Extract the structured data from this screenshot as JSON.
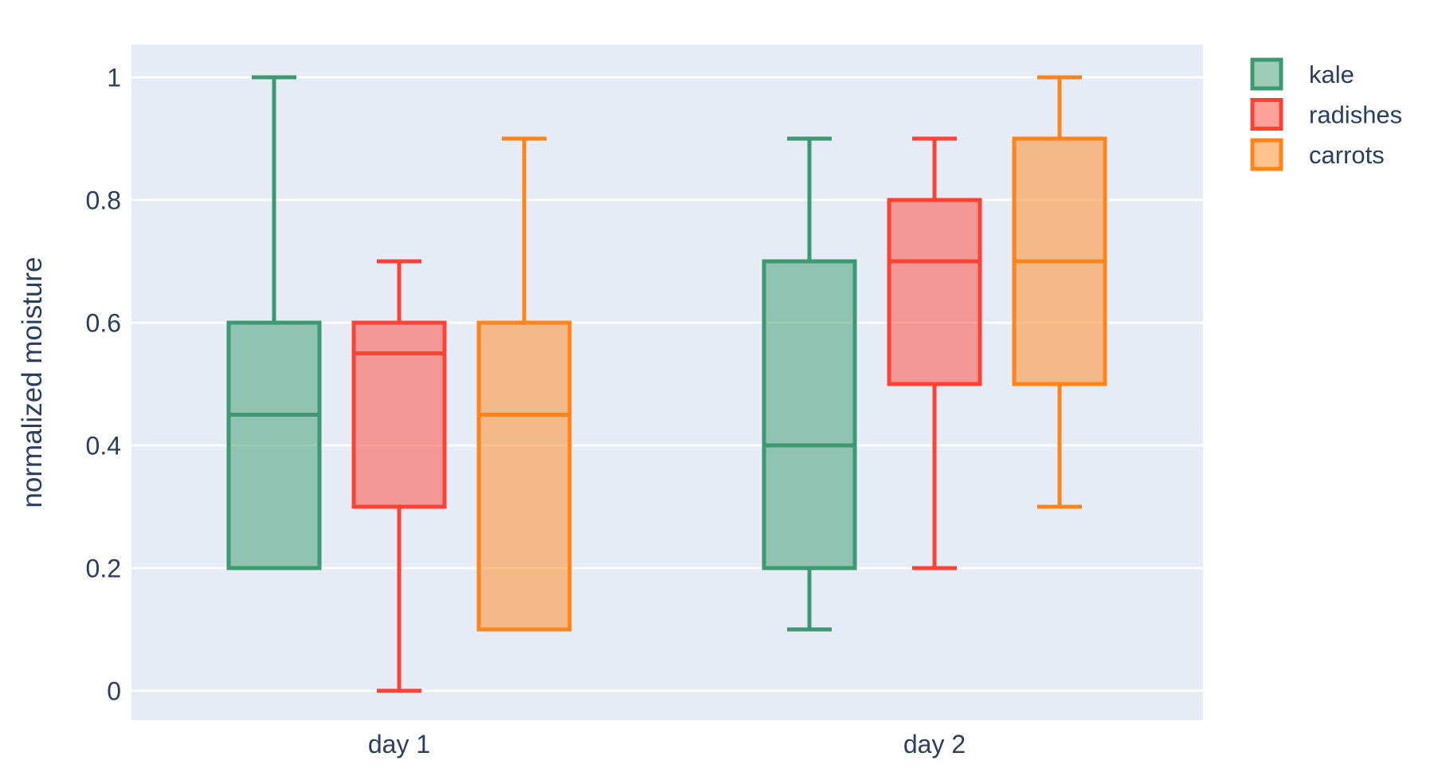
{
  "figure": {
    "background_color": "#ffffff",
    "plot_background_color": "#e5ecf6",
    "grid_color": "#ffffff",
    "text_color": "#2a3f5f"
  },
  "chart_data": {
    "type": "box",
    "boxmode": "group",
    "title": "",
    "xlabel": "",
    "ylabel": "normalized moisture",
    "categories": [
      "day 1",
      "day 2"
    ],
    "ylim": [
      0,
      1
    ],
    "ytick_values": [
      0,
      0.2,
      0.4,
      0.6,
      0.8,
      1
    ],
    "ytick_labels": [
      "0",
      "0.2",
      "0.4",
      "0.6",
      "0.8",
      "1"
    ],
    "grid": "horizontal-only",
    "legend_position": "top-right",
    "series": [
      {
        "name": "kale",
        "color": "#3d9970",
        "fill_opacity": 0.5,
        "boxes": [
          {
            "category": "day 1",
            "min": 0.2,
            "q1": 0.2,
            "median": 0.45,
            "q3": 0.6,
            "max": 1.0
          },
          {
            "category": "day 2",
            "min": 0.1,
            "q1": 0.2,
            "median": 0.4,
            "q3": 0.7,
            "max": 0.9
          }
        ]
      },
      {
        "name": "radishes",
        "color": "#ff4136",
        "fill_opacity": 0.5,
        "boxes": [
          {
            "category": "day 1",
            "min": 0.0,
            "q1": 0.3,
            "median": 0.55,
            "q3": 0.6,
            "max": 0.7
          },
          {
            "category": "day 2",
            "min": 0.2,
            "q1": 0.5,
            "median": 0.7,
            "q3": 0.8,
            "max": 0.9
          }
        ]
      },
      {
        "name": "carrots",
        "color": "#ff851b",
        "fill_opacity": 0.5,
        "boxes": [
          {
            "category": "day 1",
            "min": 0.1,
            "q1": 0.1,
            "median": 0.45,
            "q3": 0.6,
            "max": 0.9
          },
          {
            "category": "day 2",
            "min": 0.3,
            "q1": 0.5,
            "median": 0.7,
            "q3": 0.9,
            "max": 1.0
          }
        ]
      }
    ]
  }
}
